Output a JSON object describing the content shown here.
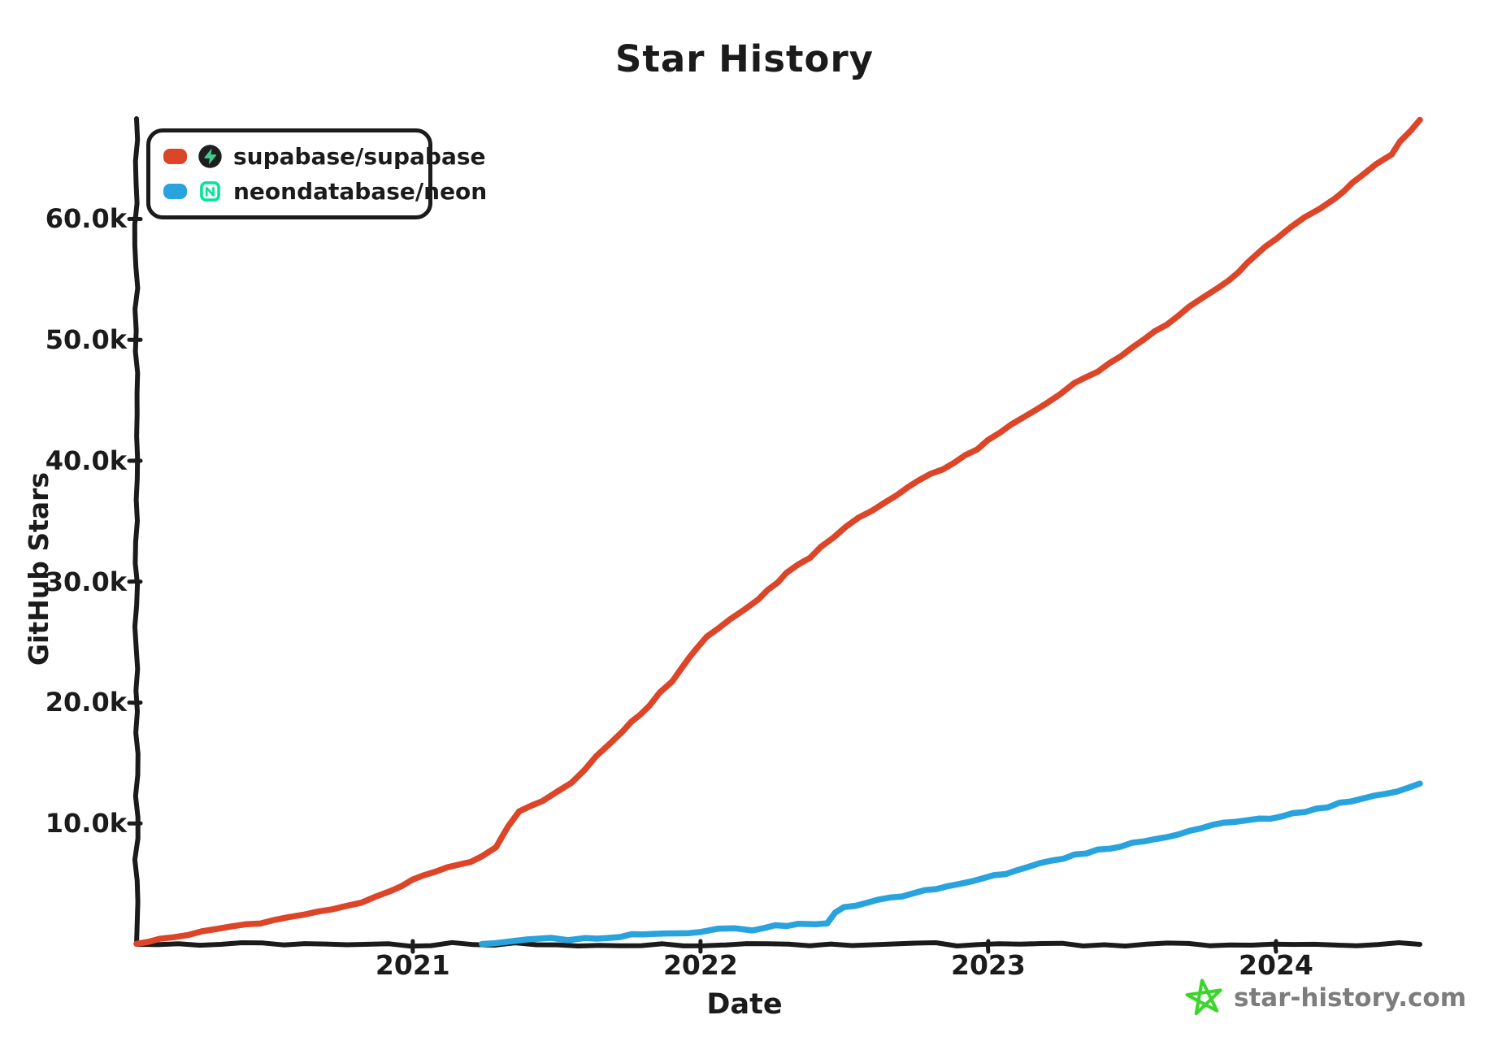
{
  "title": "Star History",
  "watermark": {
    "label": "star-history.com",
    "text_color": "#7d7d7d",
    "star_color": "#3bd62c"
  },
  "legend": {
    "items": [
      {
        "label": "supabase/supabase",
        "color": "#dd4528",
        "icon": "supabase-logo"
      },
      {
        "label": "neondatabase/neon",
        "color": "#28a3dd",
        "icon": "neon-logo"
      }
    ]
  },
  "colors": {
    "axis": "#1b1b1b",
    "supabase_line": "#dd4528",
    "neon_line": "#28a3dd",
    "supabase_logo_bg": "#1e1e1e",
    "supabase_logo_bolt": "#3ecf8e",
    "neon_logo": "#00e599"
  },
  "chart_data": {
    "type": "line",
    "title": "Star History",
    "xlabel": "Date",
    "ylabel": "GitHub Stars",
    "legend_position": "top-left",
    "grid": false,
    "xlim": [
      2020.04,
      2024.5
    ],
    "ylim": [
      0,
      68300
    ],
    "x_ticks": [
      {
        "label": "2021",
        "year": 2021
      },
      {
        "label": "2022",
        "year": 2022
      },
      {
        "label": "2023",
        "year": 2023
      },
      {
        "label": "2024",
        "year": 2024
      }
    ],
    "y_ticks": [
      {
        "label": "10.0k",
        "value": 10000
      },
      {
        "label": "20.0k",
        "value": 20000
      },
      {
        "label": "30.0k",
        "value": 30000
      },
      {
        "label": "40.0k",
        "value": 40000
      },
      {
        "label": "50.0k",
        "value": 50000
      },
      {
        "label": "60.0k",
        "value": 60000
      }
    ],
    "series": [
      {
        "name": "supabase/supabase",
        "color": "#dd4528",
        "x": [
          2020.04,
          2020.12,
          2020.22,
          2020.32,
          2020.42,
          2020.52,
          2020.62,
          2020.72,
          2020.82,
          2020.92,
          2021.0,
          2021.08,
          2021.16,
          2021.24,
          2021.29,
          2021.33,
          2021.37,
          2021.45,
          2021.55,
          2021.64,
          2021.73,
          2021.82,
          2021.9,
          2021.96,
          2022.02,
          2022.1,
          2022.2,
          2022.3,
          2022.38,
          2022.46,
          2022.55,
          2022.64,
          2022.72,
          2022.8,
          2022.88,
          2022.96,
          2023.04,
          2023.12,
          2023.2,
          2023.3,
          2023.38,
          2023.46,
          2023.54,
          2023.62,
          2023.7,
          2023.8,
          2023.9,
          2024.0,
          2024.1,
          2024.2,
          2024.3,
          2024.4,
          2024.5
        ],
        "values": [
          50,
          400,
          800,
          1200,
          1600,
          2000,
          2400,
          2900,
          3500,
          4300,
          5300,
          6000,
          6600,
          7200,
          8000,
          9800,
          11000,
          11900,
          13400,
          15500,
          17600,
          19800,
          21800,
          23800,
          25500,
          26900,
          28600,
          30700,
          32000,
          33700,
          35300,
          36600,
          37800,
          38900,
          39800,
          41000,
          42300,
          43600,
          44800,
          46400,
          47400,
          48700,
          50100,
          51300,
          52700,
          54300,
          56300,
          58400,
          60100,
          61700,
          63600,
          65400,
          68200
        ]
      },
      {
        "name": "neondatabase/neon",
        "color": "#28a3dd",
        "x": [
          2021.24,
          2021.32,
          2021.4,
          2021.48,
          2021.54,
          2021.6,
          2021.68,
          2021.76,
          2021.84,
          2021.92,
          2022.0,
          2022.06,
          2022.12,
          2022.18,
          2022.26,
          2022.34,
          2022.4,
          2022.44,
          2022.47,
          2022.5,
          2022.58,
          2022.66,
          2022.74,
          2022.82,
          2022.9,
          2022.98,
          2023.06,
          2023.14,
          2023.22,
          2023.3,
          2023.38,
          2023.46,
          2023.54,
          2023.62,
          2023.7,
          2023.78,
          2023.86,
          2023.94,
          2024.02,
          2024.1,
          2024.18,
          2024.26,
          2024.34,
          2024.42,
          2024.5
        ],
        "values": [
          30,
          150,
          350,
          500,
          380,
          480,
          620,
          750,
          870,
          950,
          1020,
          1250,
          1300,
          1200,
          1500,
          1650,
          1700,
          1780,
          2600,
          3000,
          3400,
          3850,
          4250,
          4550,
          4950,
          5450,
          5900,
          6400,
          6850,
          7400,
          7800,
          8150,
          8550,
          8950,
          9350,
          9850,
          10150,
          10350,
          10550,
          11000,
          11400,
          11900,
          12350,
          12700,
          13300
        ]
      }
    ]
  }
}
